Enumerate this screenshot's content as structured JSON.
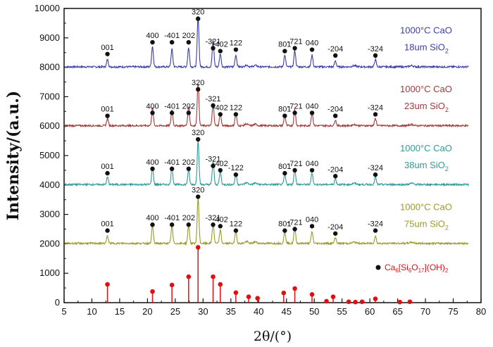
{
  "chart_data": {
    "type": "line",
    "xlabel": "2θ/(°)",
    "ylabel": "Intensity/(a.u.)",
    "xlim": [
      5,
      80
    ],
    "ylim": [
      0,
      10000
    ],
    "x_ticks": [
      "5",
      "10",
      "15",
      "20",
      "25",
      "30",
      "35",
      "40",
      "45",
      "50",
      "55",
      "60",
      "65",
      "70",
      "75",
      "80"
    ],
    "y_ticks": [
      "0",
      "1000",
      "2000",
      "3000",
      "4000",
      "5000",
      "6000",
      "7000",
      "8000",
      "9000",
      "10000"
    ],
    "series": [
      {
        "legend_line1": "1000°C CaO",
        "legend_line2": "18um SiO",
        "legend_sub": "2",
        "color": "#3b3fa6",
        "baseline": 8000,
        "peaks": [
          {
            "x": 12.8,
            "h": 250,
            "label": "001",
            "dot_y": 8450
          },
          {
            "x": 20.9,
            "h": 700,
            "label": "400",
            "dot_y": 8850
          },
          {
            "x": 24.4,
            "h": 600,
            "label": "-401",
            "dot_y": 8850
          },
          {
            "x": 27.4,
            "h": 650,
            "label": "202",
            "dot_y": 8850
          },
          {
            "x": 29.1,
            "h": 1700,
            "label": "320",
            "dot_y": 9650
          },
          {
            "x": 31.8,
            "h": 900,
            "label": "-321",
            "dot_y": 8650
          },
          {
            "x": 33.1,
            "h": 450,
            "label": "-402",
            "dot_y": 8550
          },
          {
            "x": 35.9,
            "h": 400,
            "label": "122",
            "dot_y": 8600
          },
          {
            "x": 44.7,
            "h": 400,
            "label": "801",
            "dot_y": 8550
          },
          {
            "x": 46.5,
            "h": 550,
            "label": "-721",
            "dot_y": 8650
          },
          {
            "x": 49.6,
            "h": 400,
            "label": "040",
            "dot_y": 8600
          },
          {
            "x": 53.8,
            "h": 200,
            "label": "-204",
            "dot_y": 8400
          },
          {
            "x": 61.0,
            "h": 250,
            "label": "-324",
            "dot_y": 8400
          }
        ]
      },
      {
        "legend_line1": "1000°C CaO",
        "legend_line2": "23um SiO",
        "legend_sub": "2",
        "color": "#a33a3a",
        "baseline": 6000,
        "peaks": [
          {
            "x": 12.8,
            "h": 250,
            "label": "001",
            "dot_y": 6350
          },
          {
            "x": 20.9,
            "h": 600,
            "label": "400",
            "dot_y": 6450
          },
          {
            "x": 24.4,
            "h": 550,
            "label": "-401",
            "dot_y": 6450
          },
          {
            "x": 27.4,
            "h": 650,
            "label": "202",
            "dot_y": 6450
          },
          {
            "x": 29.1,
            "h": 1450,
            "label": "320",
            "dot_y": 7250
          },
          {
            "x": 31.8,
            "h": 750,
            "label": "-321",
            "dot_y": 6700
          },
          {
            "x": 33.1,
            "h": 400,
            "label": "-402",
            "dot_y": 6400
          },
          {
            "x": 35.9,
            "h": 400,
            "label": "122",
            "dot_y": 6400
          },
          {
            "x": 44.7,
            "h": 350,
            "label": "801",
            "dot_y": 6350
          },
          {
            "x": 46.5,
            "h": 550,
            "label": "-721",
            "dot_y": 6450
          },
          {
            "x": 49.6,
            "h": 450,
            "label": "040",
            "dot_y": 6450
          },
          {
            "x": 53.8,
            "h": 200,
            "label": "-204",
            "dot_y": 6350
          },
          {
            "x": 61.0,
            "h": 250,
            "label": "-324",
            "dot_y": 6400
          }
        ]
      },
      {
        "legend_line1": "1000°C CaO",
        "legend_line2": "38um SiO",
        "legend_sub": "2",
        "color": "#2f9a9a",
        "baseline": 4000,
        "peaks": [
          {
            "x": 12.8,
            "h": 250,
            "label": "001",
            "dot_y": 4400
          },
          {
            "x": 20.9,
            "h": 600,
            "label": "400",
            "dot_y": 4550
          },
          {
            "x": 24.4,
            "h": 600,
            "label": "-401",
            "dot_y": 4550
          },
          {
            "x": 27.4,
            "h": 500,
            "label": "202",
            "dot_y": 4550
          },
          {
            "x": 29.1,
            "h": 1500,
            "label": "320",
            "dot_y": 5550
          },
          {
            "x": 31.8,
            "h": 800,
            "label": "-321",
            "dot_y": 4650
          },
          {
            "x": 33.1,
            "h": 450,
            "label": "-402",
            "dot_y": 4500
          },
          {
            "x": 35.9,
            "h": 350,
            "label": "-122",
            "dot_y": 4350
          },
          {
            "x": 44.7,
            "h": 350,
            "label": "801",
            "dot_y": 4400
          },
          {
            "x": 46.5,
            "h": 550,
            "label": "-721",
            "dot_y": 4500
          },
          {
            "x": 49.6,
            "h": 400,
            "label": "040",
            "dot_y": 4500
          },
          {
            "x": 53.8,
            "h": 200,
            "label": "-204",
            "dot_y": 4300
          },
          {
            "x": 61.0,
            "h": 250,
            "label": "-324",
            "dot_y": 4350
          }
        ]
      },
      {
        "legend_line1": "1000°C CaO",
        "legend_line2": "75um SiO",
        "legend_sub": "2",
        "color": "#9b9a2a",
        "baseline": 2000,
        "peaks": [
          {
            "x": 12.8,
            "h": 250,
            "label": "001",
            "dot_y": 2450
          },
          {
            "x": 20.9,
            "h": 600,
            "label": "400",
            "dot_y": 2650
          },
          {
            "x": 24.4,
            "h": 600,
            "label": "-401",
            "dot_y": 2650
          },
          {
            "x": 27.4,
            "h": 600,
            "label": "202",
            "dot_y": 2650
          },
          {
            "x": 29.1,
            "h": 1550,
            "label": "320",
            "dot_y": 3600
          },
          {
            "x": 31.8,
            "h": 700,
            "label": "-321",
            "dot_y": 2650
          },
          {
            "x": 33.1,
            "h": 450,
            "label": "-402",
            "dot_y": 2600
          },
          {
            "x": 35.9,
            "h": 400,
            "label": "122",
            "dot_y": 2450
          },
          {
            "x": 44.7,
            "h": 400,
            "label": "801",
            "dot_y": 2450
          },
          {
            "x": 46.5,
            "h": 550,
            "label": "-721",
            "dot_y": 2500
          },
          {
            "x": 49.6,
            "h": 400,
            "label": "040",
            "dot_y": 2600
          },
          {
            "x": 53.8,
            "h": 200,
            "label": "-204",
            "dot_y": 2350
          },
          {
            "x": 61.0,
            "h": 250,
            "label": "-324",
            "dot_y": 2450
          }
        ]
      }
    ],
    "reference": {
      "formula_parts": [
        "Ca",
        "6",
        "[Si",
        "6",
        "O",
        "17",
        "](OH)",
        "2"
      ],
      "color": "#e01010",
      "stems": [
        {
          "x": 12.8,
          "y": 620
        },
        {
          "x": 20.9,
          "y": 380
        },
        {
          "x": 24.4,
          "y": 600
        },
        {
          "x": 27.4,
          "y": 880
        },
        {
          "x": 29.1,
          "y": 1880
        },
        {
          "x": 31.8,
          "y": 880
        },
        {
          "x": 33.1,
          "y": 620
        },
        {
          "x": 35.9,
          "y": 340
        },
        {
          "x": 38.2,
          "y": 200
        },
        {
          "x": 39.8,
          "y": 150
        },
        {
          "x": 44.5,
          "y": 330
        },
        {
          "x": 46.5,
          "y": 480
        },
        {
          "x": 49.6,
          "y": 280
        },
        {
          "x": 52.2,
          "y": 50
        },
        {
          "x": 53.4,
          "y": 200
        },
        {
          "x": 56.2,
          "y": 30
        },
        {
          "x": 57.4,
          "y": 20
        },
        {
          "x": 58.6,
          "y": 30
        },
        {
          "x": 61.0,
          "y": 130
        },
        {
          "x": 65.4,
          "y": 20
        },
        {
          "x": 67.2,
          "y": 30
        }
      ]
    }
  }
}
